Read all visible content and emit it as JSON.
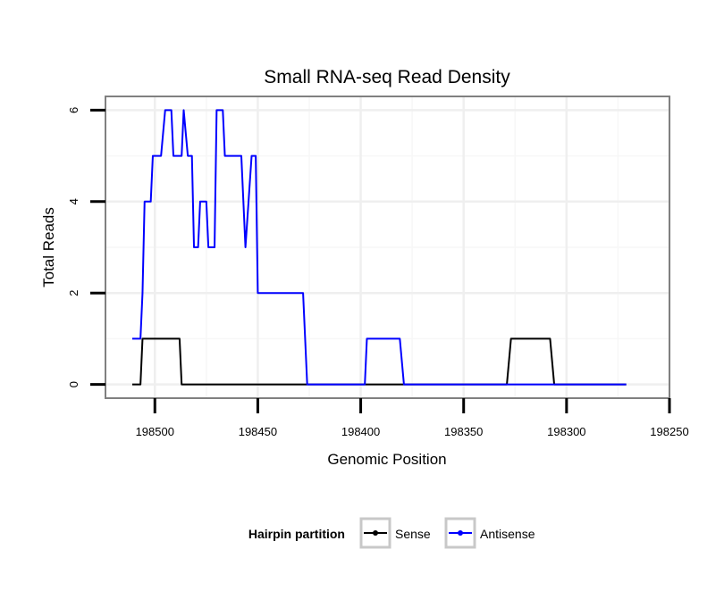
{
  "chart_data": {
    "type": "line",
    "title": "Small RNA-seq Read Density",
    "xlabel": "Genomic Position",
    "ylabel": "Total Reads",
    "xlim": [
      198524,
      198250
    ],
    "ylim": [
      -0.3,
      6.3
    ],
    "x_reversed": true,
    "x_ticks": [
      198500,
      198450,
      198400,
      198350,
      198300,
      198250
    ],
    "x_tick_labels": [
      "198500",
      "198450",
      "198400",
      "198350",
      "198300",
      "198250"
    ],
    "y_ticks": [
      0,
      2,
      4,
      6
    ],
    "y_tick_labels": [
      "0",
      "2",
      "4",
      "6"
    ],
    "x_minor_ticks": [
      198475,
      198425,
      198375,
      198325,
      198275
    ],
    "y_minor_ticks": [
      1,
      3,
      5
    ],
    "grid": true,
    "legend": {
      "title": "Hairpin partition",
      "position": "bottom",
      "entries": [
        "Sense",
        "Antisense"
      ]
    },
    "series": [
      {
        "name": "Sense",
        "color": "#000000",
        "points": [
          [
            198511,
            0
          ],
          [
            198507,
            0
          ],
          [
            198506,
            1
          ],
          [
            198488,
            1
          ],
          [
            198487,
            0
          ],
          [
            198329,
            0
          ],
          [
            198327,
            1
          ],
          [
            198308,
            1
          ],
          [
            198306,
            0
          ],
          [
            198271,
            0
          ]
        ]
      },
      {
        "name": "Antisense",
        "color": "#0000ff",
        "points": [
          [
            198511,
            1
          ],
          [
            198507,
            1
          ],
          [
            198506,
            2
          ],
          [
            198505,
            4
          ],
          [
            198502,
            4
          ],
          [
            198501,
            5
          ],
          [
            198497,
            5
          ],
          [
            198495,
            6
          ],
          [
            198492,
            6
          ],
          [
            198491,
            5
          ],
          [
            198487,
            5
          ],
          [
            198486,
            6
          ],
          [
            198484,
            5
          ],
          [
            198482,
            5
          ],
          [
            198481,
            3
          ],
          [
            198479,
            3
          ],
          [
            198478,
            4
          ],
          [
            198475,
            4
          ],
          [
            198474,
            3
          ],
          [
            198471,
            3
          ],
          [
            198470,
            6
          ],
          [
            198467,
            6
          ],
          [
            198466,
            5
          ],
          [
            198458,
            5
          ],
          [
            198456,
            3
          ],
          [
            198453,
            5
          ],
          [
            198451,
            5
          ],
          [
            198450,
            2
          ],
          [
            198428,
            2
          ],
          [
            198426,
            0
          ],
          [
            198398,
            0
          ],
          [
            198397,
            1
          ],
          [
            198381,
            1
          ],
          [
            198379,
            0
          ],
          [
            198271,
            0
          ]
        ]
      }
    ]
  }
}
